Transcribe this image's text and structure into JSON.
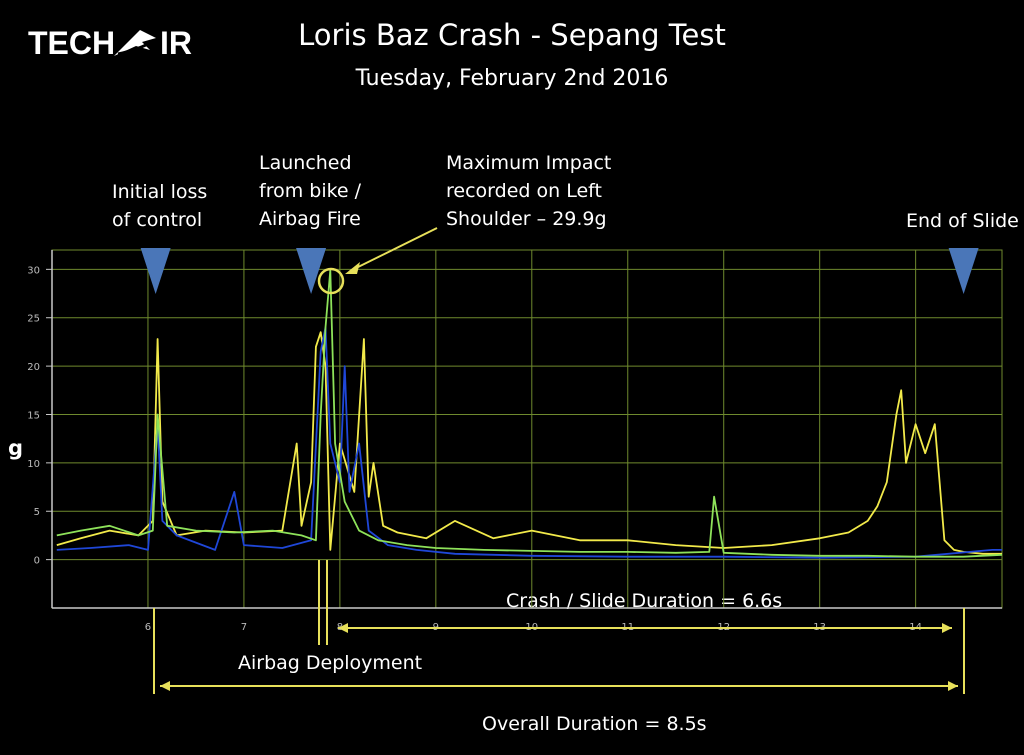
{
  "logo": {
    "text_left": "TECH",
    "text_right": "IR",
    "full": "TECH-AIR"
  },
  "title": "Loris Baz Crash - Sepang Test",
  "subtitle": "Tuesday, February 2nd 2016",
  "annotations": {
    "initial_loss": "Initial loss\nof control",
    "launched": "Launched\nfrom bike /\nAirbag Fire",
    "max_impact": "Maximum Impact\nrecorded on Left\nShoulder – 29.9g",
    "end_slide": "End of Slide",
    "airbag_deployment": "Airbag Deployment",
    "crash_duration": "Crash / Slide Duration = 6.6s",
    "overall_duration": "Overall Duration = 8.5s"
  },
  "colors": {
    "background": "#000000",
    "grid": "#6f8a2e",
    "axis": "#c9c9c9",
    "yellow": "#f2ea4a",
    "green": "#8ee25a",
    "blue": "#1f47d8",
    "marker": "#4a76b8",
    "bracket": "#e7e05a"
  },
  "chart_data": {
    "type": "line",
    "xlabel": "",
    "ylabel": "g",
    "xlim": [
      5.0,
      14.9
    ],
    "ylim": [
      -5,
      32
    ],
    "xticks": [
      6,
      7,
      8,
      9,
      10,
      11,
      12,
      13,
      14
    ],
    "yticks": [
      0,
      5,
      10,
      15,
      20,
      25,
      30
    ],
    "grid": true,
    "series": [
      {
        "color": "#f2ea4a",
        "x": [
          5.05,
          5.3,
          5.6,
          5.9,
          6.05,
          6.1,
          6.15,
          6.3,
          6.6,
          7.0,
          7.4,
          7.55,
          7.6,
          7.7,
          7.75,
          7.8,
          7.85,
          7.9,
          8.0,
          8.15,
          8.25,
          8.3,
          8.35,
          8.45,
          8.6,
          8.9,
          9.2,
          9.6,
          10.0,
          10.5,
          11.0,
          11.5,
          12.0,
          12.5,
          13.0,
          13.3,
          13.5,
          13.6,
          13.7,
          13.8,
          13.85,
          13.9,
          14.0,
          14.1,
          14.2,
          14.25,
          14.3,
          14.4,
          14.5,
          14.7,
          14.9
        ],
        "values": [
          1.5,
          2.2,
          3.0,
          2.5,
          4.0,
          22.8,
          6.0,
          2.5,
          3.0,
          2.8,
          3.0,
          12.0,
          3.5,
          8.0,
          22.0,
          23.5,
          20.0,
          1.0,
          12.0,
          7.0,
          22.8,
          6.5,
          10.0,
          3.5,
          2.8,
          2.2,
          4.0,
          2.2,
          3.0,
          2.0,
          2.0,
          1.5,
          1.2,
          1.5,
          2.2,
          2.8,
          4.0,
          5.5,
          8.0,
          15.0,
          17.5,
          10.0,
          14.0,
          11.0,
          14.0,
          8.0,
          2.0,
          1.0,
          0.8,
          0.6,
          0.6
        ]
      },
      {
        "color": "#8ee25a",
        "x": [
          5.05,
          5.3,
          5.6,
          5.9,
          6.05,
          6.1,
          6.2,
          6.5,
          6.9,
          7.3,
          7.6,
          7.75,
          7.8,
          7.85,
          7.9,
          7.95,
          8.05,
          8.2,
          8.4,
          8.7,
          9.0,
          9.5,
          10.0,
          10.5,
          11.0,
          11.5,
          11.85,
          11.9,
          12.0,
          12.5,
          13.0,
          13.5,
          14.0,
          14.5,
          14.9
        ],
        "values": [
          2.5,
          3.0,
          3.5,
          2.5,
          3.0,
          15.0,
          3.5,
          3.0,
          2.8,
          3.0,
          2.5,
          2.0,
          15.0,
          24.0,
          29.9,
          12.0,
          6.0,
          3.0,
          2.0,
          1.5,
          1.2,
          1.0,
          0.9,
          0.8,
          0.8,
          0.7,
          0.8,
          6.5,
          0.7,
          0.5,
          0.4,
          0.4,
          0.3,
          0.3,
          0.5
        ]
      },
      {
        "color": "#1f47d8",
        "x": [
          5.05,
          5.4,
          5.8,
          6.0,
          6.1,
          6.15,
          6.3,
          6.7,
          6.9,
          7.0,
          7.4,
          7.7,
          7.8,
          7.85,
          7.9,
          8.0,
          8.05,
          8.1,
          8.2,
          8.3,
          8.5,
          8.8,
          9.2,
          10.0,
          11.0,
          12.0,
          13.0,
          14.0,
          14.8,
          14.9
        ],
        "values": [
          1.0,
          1.2,
          1.5,
          1.0,
          14.0,
          4.0,
          2.5,
          1.0,
          7.0,
          1.5,
          1.2,
          2.0,
          21.5,
          24.0,
          12.0,
          8.0,
          20.0,
          7.0,
          12.0,
          3.0,
          1.5,
          1.0,
          0.6,
          0.4,
          0.3,
          0.3,
          0.2,
          0.3,
          1.0,
          1.0
        ]
      }
    ]
  }
}
